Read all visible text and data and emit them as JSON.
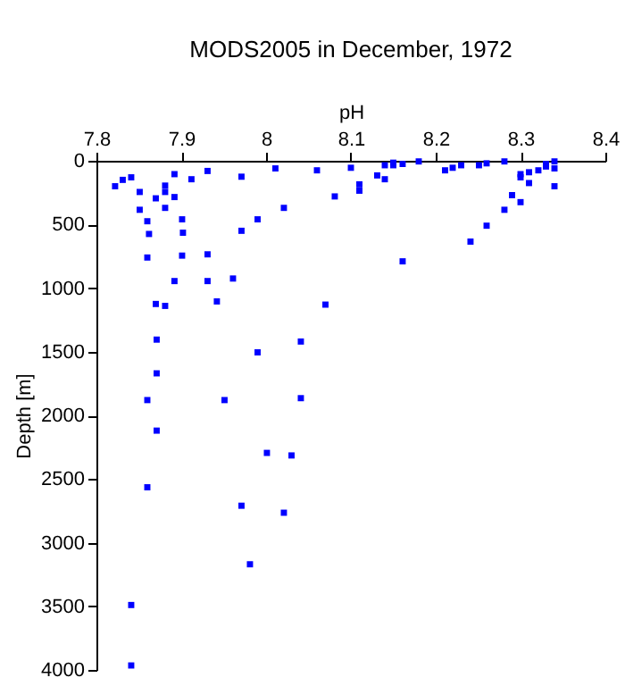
{
  "chart_data": {
    "type": "scatter",
    "title": "MODS2005 in December, 1972",
    "xlabel": "pH",
    "ylabel": "Depth [m]",
    "x": [
      7.822,
      7.831,
      7.841,
      7.851,
      7.851,
      7.86,
      7.862,
      7.86,
      7.87,
      7.881,
      7.881,
      7.881,
      7.892,
      7.892,
      7.901,
      7.902,
      7.901,
      7.892,
      7.87,
      7.881,
      7.871,
      7.871,
      7.86,
      7.912,
      7.931,
      7.931,
      7.931,
      7.942,
      7.961,
      7.951,
      7.971,
      7.971,
      7.99,
      7.99,
      8.011,
      8.021,
      8.041,
      8.041,
      8.06,
      8.07,
      8.081,
      7.871,
      7.86,
      7.841,
      7.841,
      7.971,
      8.001,
      8.03,
      8.021,
      7.981,
      8.1,
      8.11,
      8.11,
      8.131,
      8.14,
      8.14,
      8.15,
      8.15,
      8.161,
      8.18,
      8.161,
      8.211,
      8.22,
      8.23,
      8.251,
      8.26,
      8.281,
      8.3,
      8.3,
      8.31,
      8.31,
      8.321,
      8.33,
      8.33,
      8.34,
      8.34,
      8.34,
      8.29,
      8.3,
      8.281,
      8.26,
      8.241
    ],
    "series": [
      {
        "color": "#0000ff",
        "values": [
          200,
          150,
          130,
          245,
          385,
          475,
          575,
          760,
          295,
          195,
          245,
          370,
          105,
          285,
          460,
          565,
          745,
          945,
          1125,
          1140,
          1405,
          1670,
          1880,
          145,
          80,
          735,
          945,
          1105,
          925,
          1880,
          125,
          550,
          460,
          1505,
          60,
          370,
          1420,
          1865,
          75,
          1130,
          280,
          2120,
          2565,
          3490,
          3965,
          2710,
          2295,
          2315,
          2765,
          3170,
          55,
          185,
          235,
          115,
          35,
          145,
          15,
          35,
          25,
          5,
          790,
          75,
          55,
          35,
          35,
          20,
          5,
          105,
          130,
          90,
          175,
          75,
          25,
          45,
          5,
          60,
          200,
          270,
          325,
          385,
          510,
          635
        ]
      }
    ],
    "xlim": [
      7.8,
      8.4
    ],
    "xticks": [
      7.8,
      7.9,
      8,
      8.1,
      8.2,
      8.3,
      8.4
    ],
    "ylim": [
      4000,
      0
    ],
    "yticks": [
      0,
      500,
      1000,
      1500,
      2000,
      2500,
      3000,
      3500,
      4000
    ],
    "marker": "square",
    "grid": false,
    "legend": false
  }
}
